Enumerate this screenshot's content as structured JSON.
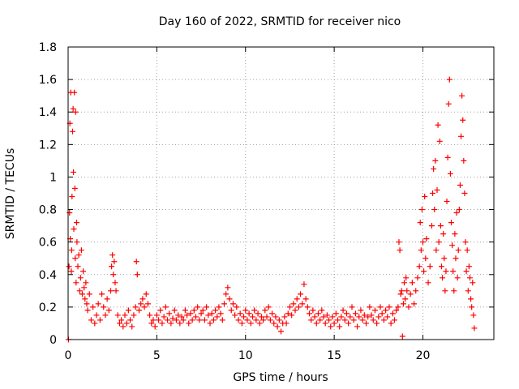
{
  "chart_data": {
    "type": "scatter",
    "title": "Day 160 of 2022, SRMTID for receiver nico",
    "xlabel": "GPS time / hours",
    "ylabel": "SRMTID / TECUs",
    "xlim": [
      0,
      24
    ],
    "ylim": [
      0,
      1.8
    ],
    "grid": true,
    "marker": "+",
    "color": "#ff0000",
    "x_ticks": [
      0,
      5,
      10,
      15,
      20
    ],
    "x_tick_labels": [
      "0",
      "5",
      "10",
      "15",
      "20"
    ],
    "y_ticks": [
      0,
      0.2,
      0.4,
      0.6,
      0.8,
      1.0,
      1.2,
      1.4,
      1.6,
      1.8
    ],
    "y_tick_labels": [
      "0",
      "0.2",
      "0.4",
      "0.6",
      "0.8",
      "1",
      "1.2",
      "1.4",
      "1.6",
      "1.8"
    ],
    "series": [
      {
        "name": "SRMTID",
        "points": [
          [
            0.02,
            0.0
          ],
          [
            0.05,
            0.45
          ],
          [
            0.08,
            0.78
          ],
          [
            0.1,
            1.33
          ],
          [
            0.12,
            0.62
          ],
          [
            0.15,
            1.52
          ],
          [
            0.18,
            0.42
          ],
          [
            0.2,
            0.55
          ],
          [
            0.22,
            0.88
          ],
          [
            0.25,
            1.28
          ],
          [
            0.28,
            1.42
          ],
          [
            0.3,
            1.03
          ],
          [
            0.32,
            0.68
          ],
          [
            0.35,
            1.52
          ],
          [
            0.38,
            0.93
          ],
          [
            0.4,
            0.5
          ],
          [
            0.42,
            1.4
          ],
          [
            0.45,
            0.35
          ],
          [
            0.48,
            0.72
          ],
          [
            0.5,
            0.6
          ],
          [
            0.55,
            0.45
          ],
          [
            0.6,
            0.52
          ],
          [
            0.65,
            0.3
          ],
          [
            0.7,
            0.38
          ],
          [
            0.75,
            0.55
          ],
          [
            0.8,
            0.28
          ],
          [
            0.85,
            0.42
          ],
          [
            0.9,
            0.32
          ],
          [
            0.95,
            0.25
          ],
          [
            1.0,
            0.35
          ],
          [
            1.05,
            0.22
          ],
          [
            1.1,
            0.18
          ],
          [
            1.2,
            0.28
          ],
          [
            1.3,
            0.12
          ],
          [
            1.4,
            0.2
          ],
          [
            1.5,
            0.1
          ],
          [
            1.6,
            0.15
          ],
          [
            1.7,
            0.22
          ],
          [
            1.8,
            0.12
          ],
          [
            1.9,
            0.28
          ],
          [
            2.0,
            0.2
          ],
          [
            2.1,
            0.15
          ],
          [
            2.2,
            0.25
          ],
          [
            2.3,
            0.18
          ],
          [
            2.4,
            0.3
          ],
          [
            2.45,
            0.45
          ],
          [
            2.5,
            0.52
          ],
          [
            2.55,
            0.4
          ],
          [
            2.6,
            0.48
          ],
          [
            2.65,
            0.35
          ],
          [
            2.7,
            0.3
          ],
          [
            2.8,
            0.15
          ],
          [
            2.9,
            0.1
          ],
          [
            3.0,
            0.12
          ],
          [
            3.1,
            0.08
          ],
          [
            3.2,
            0.15
          ],
          [
            3.3,
            0.1
          ],
          [
            3.4,
            0.18
          ],
          [
            3.5,
            0.12
          ],
          [
            3.6,
            0.08
          ],
          [
            3.7,
            0.15
          ],
          [
            3.8,
            0.2
          ],
          [
            3.85,
            0.48
          ],
          [
            3.9,
            0.4
          ],
          [
            4.0,
            0.18
          ],
          [
            4.1,
            0.22
          ],
          [
            4.2,
            0.25
          ],
          [
            4.3,
            0.2
          ],
          [
            4.4,
            0.28
          ],
          [
            4.5,
            0.22
          ],
          [
            4.6,
            0.15
          ],
          [
            4.7,
            0.1
          ],
          [
            4.8,
            0.12
          ],
          [
            4.9,
            0.08
          ],
          [
            5.0,
            0.15
          ],
          [
            5.1,
            0.12
          ],
          [
            5.2,
            0.18
          ],
          [
            5.3,
            0.1
          ],
          [
            5.4,
            0.14
          ],
          [
            5.5,
            0.2
          ],
          [
            5.6,
            0.12
          ],
          [
            5.7,
            0.16
          ],
          [
            5.8,
            0.1
          ],
          [
            5.9,
            0.13
          ],
          [
            6.0,
            0.18
          ],
          [
            6.1,
            0.12
          ],
          [
            6.2,
            0.15
          ],
          [
            6.3,
            0.1
          ],
          [
            6.4,
            0.14
          ],
          [
            6.5,
            0.12
          ],
          [
            6.6,
            0.18
          ],
          [
            6.7,
            0.15
          ],
          [
            6.8,
            0.1
          ],
          [
            6.9,
            0.16
          ],
          [
            7.0,
            0.12
          ],
          [
            7.1,
            0.18
          ],
          [
            7.2,
            0.14
          ],
          [
            7.3,
            0.2
          ],
          [
            7.4,
            0.12
          ],
          [
            7.5,
            0.16
          ],
          [
            7.6,
            0.18
          ],
          [
            7.7,
            0.12
          ],
          [
            7.8,
            0.2
          ],
          [
            7.9,
            0.15
          ],
          [
            8.0,
            0.1
          ],
          [
            8.1,
            0.16
          ],
          [
            8.2,
            0.12
          ],
          [
            8.3,
            0.18
          ],
          [
            8.4,
            0.14
          ],
          [
            8.5,
            0.2
          ],
          [
            8.6,
            0.16
          ],
          [
            8.7,
            0.12
          ],
          [
            8.8,
            0.22
          ],
          [
            8.9,
            0.28
          ],
          [
            9.0,
            0.32
          ],
          [
            9.1,
            0.25
          ],
          [
            9.2,
            0.18
          ],
          [
            9.3,
            0.22
          ],
          [
            9.4,
            0.15
          ],
          [
            9.5,
            0.2
          ],
          [
            9.6,
            0.12
          ],
          [
            9.7,
            0.16
          ],
          [
            9.8,
            0.1
          ],
          [
            9.9,
            0.14
          ],
          [
            10.0,
            0.18
          ],
          [
            10.1,
            0.12
          ],
          [
            10.2,
            0.16
          ],
          [
            10.3,
            0.1
          ],
          [
            10.4,
            0.14
          ],
          [
            10.5,
            0.18
          ],
          [
            10.6,
            0.12
          ],
          [
            10.7,
            0.16
          ],
          [
            10.8,
            0.1
          ],
          [
            10.9,
            0.14
          ],
          [
            11.0,
            0.12
          ],
          [
            11.1,
            0.18
          ],
          [
            11.2,
            0.14
          ],
          [
            11.3,
            0.2
          ],
          [
            11.4,
            0.12
          ],
          [
            11.5,
            0.16
          ],
          [
            11.6,
            0.1
          ],
          [
            11.7,
            0.14
          ],
          [
            11.8,
            0.08
          ],
          [
            11.9,
            0.12
          ],
          [
            12.0,
            0.05
          ],
          [
            12.1,
            0.1
          ],
          [
            12.2,
            0.14
          ],
          [
            12.3,
            0.1
          ],
          [
            12.4,
            0.16
          ],
          [
            12.5,
            0.2
          ],
          [
            12.6,
            0.15
          ],
          [
            12.7,
            0.22
          ],
          [
            12.8,
            0.18
          ],
          [
            12.9,
            0.25
          ],
          [
            13.0,
            0.2
          ],
          [
            13.1,
            0.28
          ],
          [
            13.2,
            0.22
          ],
          [
            13.3,
            0.34
          ],
          [
            13.4,
            0.25
          ],
          [
            13.5,
            0.2
          ],
          [
            13.6,
            0.16
          ],
          [
            13.7,
            0.12
          ],
          [
            13.8,
            0.18
          ],
          [
            13.9,
            0.14
          ],
          [
            14.0,
            0.1
          ],
          [
            14.1,
            0.16
          ],
          [
            14.2,
            0.12
          ],
          [
            14.3,
            0.18
          ],
          [
            14.4,
            0.14
          ],
          [
            14.5,
            0.1
          ],
          [
            14.6,
            0.15
          ],
          [
            14.7,
            0.12
          ],
          [
            14.8,
            0.08
          ],
          [
            14.9,
            0.14
          ],
          [
            15.0,
            0.1
          ],
          [
            15.1,
            0.16
          ],
          [
            15.2,
            0.12
          ],
          [
            15.3,
            0.08
          ],
          [
            15.4,
            0.14
          ],
          [
            15.5,
            0.18
          ],
          [
            15.6,
            0.12
          ],
          [
            15.7,
            0.16
          ],
          [
            15.8,
            0.1
          ],
          [
            15.9,
            0.14
          ],
          [
            16.0,
            0.2
          ],
          [
            16.1,
            0.12
          ],
          [
            16.2,
            0.16
          ],
          [
            16.3,
            0.08
          ],
          [
            16.4,
            0.14
          ],
          [
            16.5,
            0.18
          ],
          [
            16.6,
            0.12
          ],
          [
            16.7,
            0.15
          ],
          [
            16.8,
            0.1
          ],
          [
            16.9,
            0.14
          ],
          [
            17.0,
            0.2
          ],
          [
            17.1,
            0.15
          ],
          [
            17.2,
            0.12
          ],
          [
            17.3,
            0.18
          ],
          [
            17.4,
            0.1
          ],
          [
            17.5,
            0.14
          ],
          [
            17.6,
            0.2
          ],
          [
            17.7,
            0.16
          ],
          [
            17.8,
            0.12
          ],
          [
            17.9,
            0.18
          ],
          [
            18.0,
            0.14
          ],
          [
            18.1,
            0.2
          ],
          [
            18.2,
            0.1
          ],
          [
            18.3,
            0.16
          ],
          [
            18.4,
            0.12
          ],
          [
            18.5,
            0.18
          ],
          [
            18.6,
            0.2
          ],
          [
            18.65,
            0.6
          ],
          [
            18.7,
            0.55
          ],
          [
            18.75,
            0.28
          ],
          [
            18.8,
            0.3
          ],
          [
            18.85,
            0.02
          ],
          [
            18.9,
            0.22
          ],
          [
            18.95,
            0.35
          ],
          [
            19.0,
            0.25
          ],
          [
            19.05,
            0.38
          ],
          [
            19.1,
            0.3
          ],
          [
            19.2,
            0.2
          ],
          [
            19.3,
            0.28
          ],
          [
            19.4,
            0.35
          ],
          [
            19.5,
            0.22
          ],
          [
            19.6,
            0.3
          ],
          [
            19.7,
            0.38
          ],
          [
            19.8,
            0.45
          ],
          [
            19.85,
            0.72
          ],
          [
            19.9,
            0.55
          ],
          [
            19.95,
            0.8
          ],
          [
            20.0,
            0.6
          ],
          [
            20.05,
            0.42
          ],
          [
            20.1,
            0.88
          ],
          [
            20.15,
            0.5
          ],
          [
            20.2,
            0.62
          ],
          [
            20.3,
            0.35
          ],
          [
            20.4,
            0.45
          ],
          [
            20.5,
            0.7
          ],
          [
            20.55,
            0.9
          ],
          [
            20.6,
            1.05
          ],
          [
            20.65,
            0.8
          ],
          [
            20.7,
            1.1
          ],
          [
            20.75,
            0.55
          ],
          [
            20.8,
            0.92
          ],
          [
            20.85,
            1.32
          ],
          [
            20.9,
            0.6
          ],
          [
            20.95,
            1.22
          ],
          [
            21.0,
            0.7
          ],
          [
            21.05,
            0.45
          ],
          [
            21.1,
            0.38
          ],
          [
            21.15,
            0.65
          ],
          [
            21.2,
            0.5
          ],
          [
            21.25,
            0.3
          ],
          [
            21.3,
            0.42
          ],
          [
            21.35,
            0.85
          ],
          [
            21.4,
            1.12
          ],
          [
            21.45,
            1.45
          ],
          [
            21.5,
            1.6
          ],
          [
            21.55,
            1.02
          ],
          [
            21.6,
            0.72
          ],
          [
            21.65,
            0.58
          ],
          [
            21.7,
            0.42
          ],
          [
            21.75,
            0.3
          ],
          [
            21.8,
            0.65
          ],
          [
            21.85,
            0.5
          ],
          [
            21.9,
            0.78
          ],
          [
            21.95,
            0.38
          ],
          [
            22.0,
            0.55
          ],
          [
            22.05,
            0.8
          ],
          [
            22.1,
            0.95
          ],
          [
            22.15,
            1.25
          ],
          [
            22.2,
            1.5
          ],
          [
            22.25,
            1.35
          ],
          [
            22.3,
            1.1
          ],
          [
            22.35,
            0.9
          ],
          [
            22.4,
            0.6
          ],
          [
            22.45,
            0.42
          ],
          [
            22.5,
            0.55
          ],
          [
            22.55,
            0.3
          ],
          [
            22.6,
            0.45
          ],
          [
            22.65,
            0.38
          ],
          [
            22.7,
            0.25
          ],
          [
            22.75,
            0.2
          ],
          [
            22.8,
            0.35
          ],
          [
            22.85,
            0.15
          ],
          [
            22.9,
            0.07
          ]
        ]
      }
    ]
  }
}
